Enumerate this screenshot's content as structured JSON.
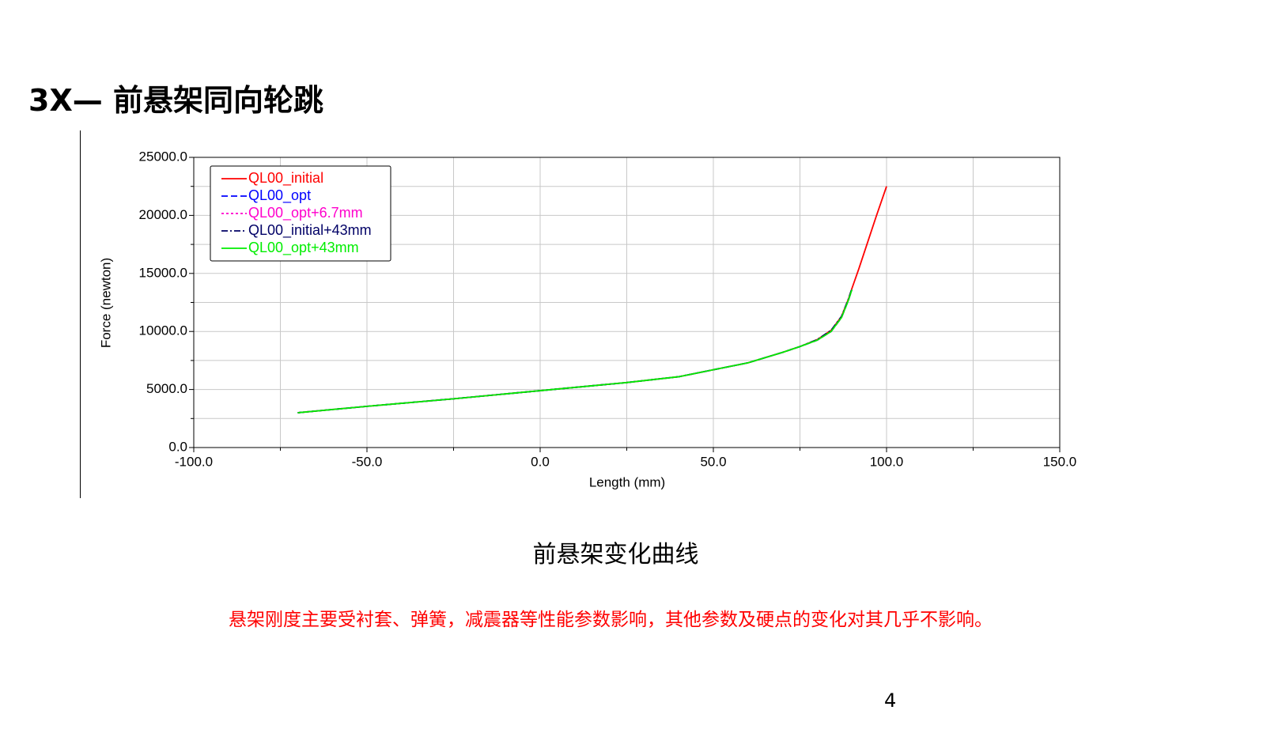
{
  "slide": {
    "title": "3X— 前悬架同向轮跳",
    "caption": "前悬架变化曲线",
    "note": "悬架刚度主要受衬套、弹簧，减震器等性能参数影响，其他参数及硬点的变化对其几乎不影响。",
    "page_number": "4"
  },
  "chart_data": {
    "type": "line",
    "x_label": "Length (mm)",
    "y_label": "Force (newton)",
    "x": [
      -70,
      -50,
      -25,
      0,
      25,
      40,
      50,
      60,
      70,
      75,
      80,
      84,
      87,
      89,
      90,
      92,
      95,
      97,
      100
    ],
    "series": [
      {
        "name": "QL00_initial",
        "color": "#ff0000",
        "dash": "solid",
        "values": [
          3000,
          3550,
          4200,
          4900,
          5600,
          6100,
          6700,
          7300,
          8200,
          8700,
          9300,
          10100,
          11300,
          12800,
          13700,
          15400,
          18100,
          19900,
          22500
        ]
      },
      {
        "name": "QL00_opt",
        "color": "#0000ff",
        "dash": "dashed",
        "values": [
          3000,
          3550,
          4200,
          4900,
          5600,
          6100,
          6700,
          7300,
          8200,
          8700,
          9250,
          10000,
          11200,
          12700,
          13600,
          null,
          null,
          null,
          null
        ]
      },
      {
        "name": "QL00_opt+6.7mm",
        "color": "#ff00cc",
        "dash": "dotted",
        "values": [
          3000,
          3550,
          4200,
          4900,
          5600,
          6100,
          6700,
          7300,
          8200,
          8700,
          9250,
          10000,
          11200,
          12700,
          13600,
          null,
          null,
          null,
          null
        ]
      },
      {
        "name": "QL00_initial+43mm",
        "color": "#000066",
        "dash": "dashdot",
        "values": [
          3000,
          3550,
          4200,
          4900,
          5600,
          6100,
          6700,
          7300,
          8200,
          8700,
          9300,
          10100,
          11300,
          12800,
          13700,
          null,
          null,
          null,
          null
        ]
      },
      {
        "name": "QL00_opt+43mm",
        "color": "#00ee00",
        "dash": "solid",
        "values": [
          3000,
          3550,
          4200,
          4900,
          5600,
          6100,
          6700,
          7300,
          8200,
          8700,
          9250,
          10000,
          11200,
          12700,
          13600,
          null,
          null,
          null,
          null
        ]
      }
    ],
    "xlim": [
      -100,
      150
    ],
    "xticks": [
      {
        "value": -100,
        "label": "-100.0"
      },
      {
        "value": -50,
        "label": "-50.0"
      },
      {
        "value": 0,
        "label": "0.0"
      },
      {
        "value": 50,
        "label": "50.0"
      },
      {
        "value": 100,
        "label": "100.0"
      },
      {
        "value": 150,
        "label": "150.0"
      }
    ],
    "xminorticks": [
      -75,
      -25,
      25,
      75,
      125
    ],
    "ylim": [
      0,
      25000
    ],
    "yticks": [
      {
        "value": 0,
        "label": "0.0"
      },
      {
        "value": 5000,
        "label": "5000.0"
      },
      {
        "value": 10000,
        "label": "10000.0"
      },
      {
        "value": 15000,
        "label": "15000.0"
      },
      {
        "value": 20000,
        "label": "20000.0"
      },
      {
        "value": 25000,
        "label": "25000.0"
      }
    ],
    "yminorticks": [
      2500,
      7500,
      12500,
      17500,
      22500
    ],
    "grid": true,
    "legend": "upper-left"
  }
}
